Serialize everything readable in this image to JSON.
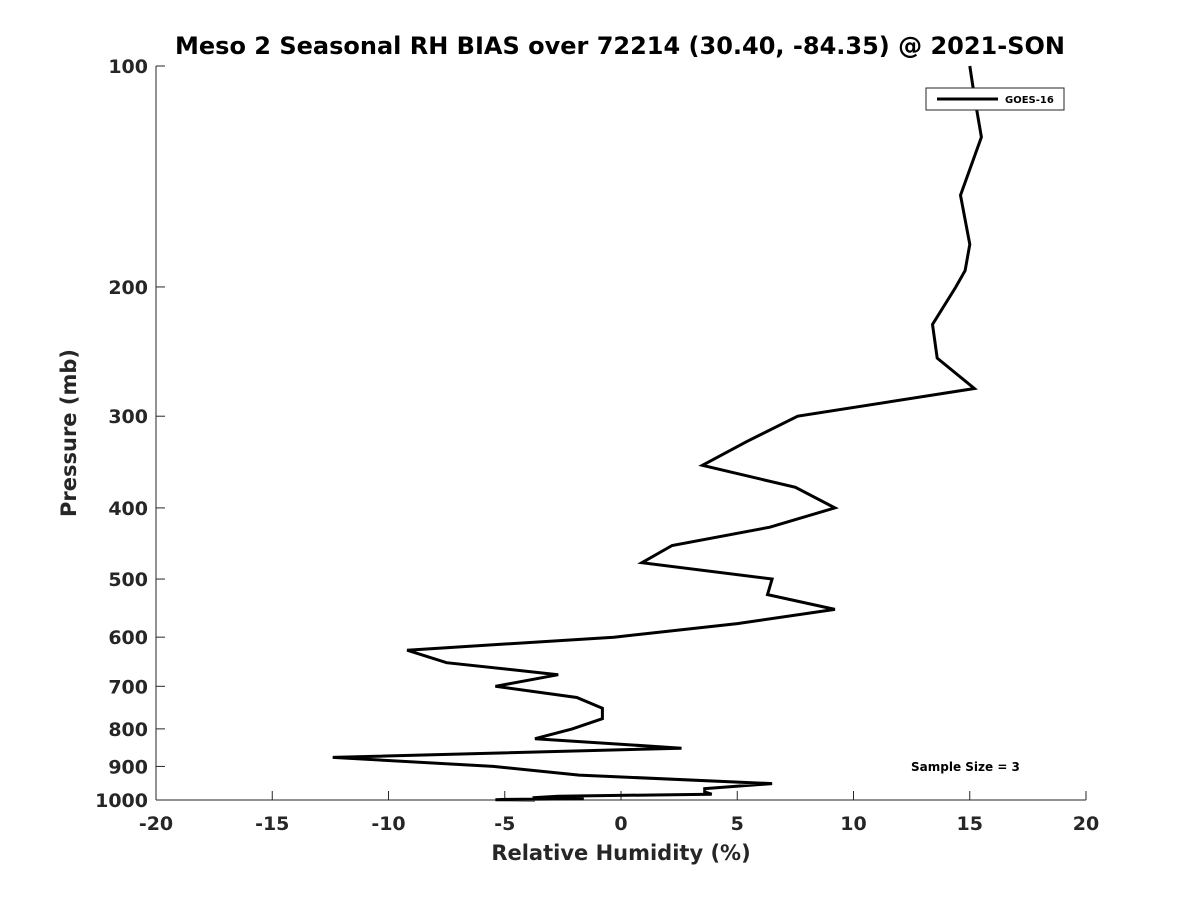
{
  "chart_data": {
    "type": "line",
    "title": "Meso 2 Seasonal RH BIAS over 72214 (30.40, -84.35) @ 2021-SON",
    "xlabel": "Relative Humidity (%)",
    "ylabel": "Pressure (mb)",
    "xlim": [
      -20,
      20
    ],
    "ylim": [
      100,
      1000
    ],
    "y_scale": "log",
    "y_reversed": true,
    "grid": false,
    "legend_position": "top-right",
    "x_ticks": [
      -20,
      -15,
      -10,
      -5,
      0,
      5,
      10,
      15,
      20
    ],
    "y_ticks": [
      100,
      200,
      300,
      400,
      500,
      600,
      700,
      800,
      900,
      1000
    ],
    "annotation": "Sample Size = 3",
    "series": [
      {
        "name": "GOES-16",
        "color": "#000000",
        "points": [
          {
            "x": 15.0,
            "p": 100
          },
          {
            "x": 15.2,
            "p": 110
          },
          {
            "x": 15.5,
            "p": 125
          },
          {
            "x": 14.6,
            "p": 150
          },
          {
            "x": 15.0,
            "p": 175
          },
          {
            "x": 14.8,
            "p": 190
          },
          {
            "x": 14.4,
            "p": 200
          },
          {
            "x": 13.4,
            "p": 225
          },
          {
            "x": 13.6,
            "p": 250
          },
          {
            "x": 15.2,
            "p": 275
          },
          {
            "x": 7.6,
            "p": 300
          },
          {
            "x": 5.4,
            "p": 325
          },
          {
            "x": 3.5,
            "p": 350
          },
          {
            "x": 7.5,
            "p": 375
          },
          {
            "x": 9.2,
            "p": 400
          },
          {
            "x": 6.4,
            "p": 425
          },
          {
            "x": 2.2,
            "p": 450
          },
          {
            "x": 0.9,
            "p": 475
          },
          {
            "x": 6.5,
            "p": 500
          },
          {
            "x": 6.3,
            "p": 525
          },
          {
            "x": 9.2,
            "p": 550
          },
          {
            "x": 5.0,
            "p": 575
          },
          {
            "x": -0.3,
            "p": 600
          },
          {
            "x": -9.2,
            "p": 625
          },
          {
            "x": -7.5,
            "p": 650
          },
          {
            "x": -2.7,
            "p": 675
          },
          {
            "x": -5.4,
            "p": 700
          },
          {
            "x": -1.9,
            "p": 725
          },
          {
            "x": -0.8,
            "p": 750
          },
          {
            "x": -0.8,
            "p": 775
          },
          {
            "x": -2.1,
            "p": 800
          },
          {
            "x": -3.7,
            "p": 825
          },
          {
            "x": 2.6,
            "p": 850
          },
          {
            "x": -12.4,
            "p": 875
          },
          {
            "x": -5.5,
            "p": 900
          },
          {
            "x": -1.8,
            "p": 925
          },
          {
            "x": 6.5,
            "p": 950
          },
          {
            "x": 3.6,
            "p": 965
          },
          {
            "x": 3.6,
            "p": 975
          },
          {
            "x": 3.9,
            "p": 982
          },
          {
            "x": -2.7,
            "p": 988
          },
          {
            "x": -3.8,
            "p": 993
          },
          {
            "x": -1.6,
            "p": 996
          },
          {
            "x": -5.0,
            "p": 998
          },
          {
            "x": -5.4,
            "p": 999
          },
          {
            "x": -3.7,
            "p": 1000
          }
        ]
      }
    ]
  }
}
